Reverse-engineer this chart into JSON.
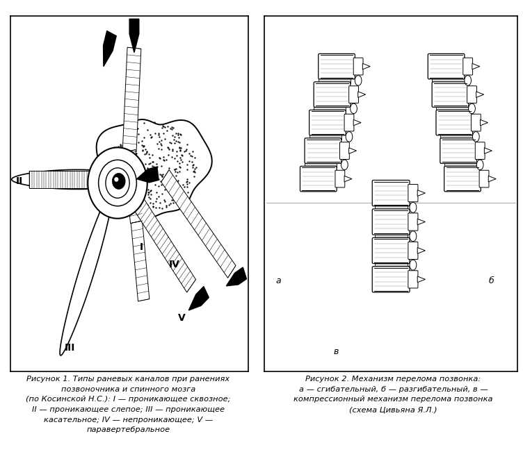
{
  "bg_color": "#ffffff",
  "fig_width": 7.52,
  "fig_height": 6.64,
  "dpi": 100,
  "caption1_lines": [
    "Рисунок 1. Типы раневых каналов при ранениях",
    "позвоночника и спинного мозга",
    "(по Косинской Н.С.): I — проникающее сквозное;",
    "II — проникающее слепое; III — проникающее",
    "касательное; IV — непроникающее; V —",
    "паравертебральное"
  ],
  "caption2_lines": [
    "Рисунок 2. Механизм перелома позвонка:",
    "а — сгибательный, б — разгибательный, в —",
    "компрессионный механизм перелома позвонка",
    "(схема Цивьяна Я.Л.)"
  ],
  "label_I": "I",
  "label_II": "II",
  "label_III": "III",
  "label_IV": "IV",
  "label_V": "V",
  "label_a": "а",
  "label_b": "б",
  "label_v": "в",
  "text_color": "#000000",
  "caption_fontsize": 8.2,
  "label_fontsize": 10,
  "white": "#ffffff",
  "black": "#000000"
}
